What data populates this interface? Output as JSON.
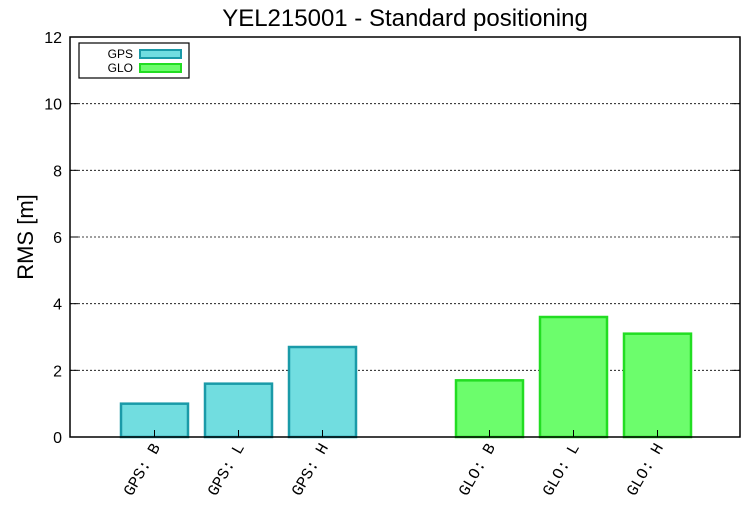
{
  "chart_data": {
    "type": "bar",
    "title": "YEL215001 - Standard positioning",
    "xlabel": "",
    "ylabel": "RMS [m]",
    "ylim": [
      0,
      12
    ],
    "yticks": [
      "0",
      "2",
      "4",
      "6",
      "8",
      "10",
      "12"
    ],
    "grid": true,
    "legend_position": "top-left",
    "series": [
      {
        "name": "GPS",
        "color": "#71dde0",
        "edge_color": "#1a9aa8",
        "categories": [
          "GPS: B",
          "GPS: L",
          "GPS: H"
        ],
        "values": [
          1.0,
          1.6,
          2.7
        ]
      },
      {
        "name": "GLO",
        "color": "#6cfd6c",
        "edge_color": "#22dd22",
        "categories": [
          "GLO: B",
          "GLO: L",
          "GLO: H"
        ],
        "values": [
          1.7,
          3.6,
          3.1
        ]
      }
    ]
  }
}
